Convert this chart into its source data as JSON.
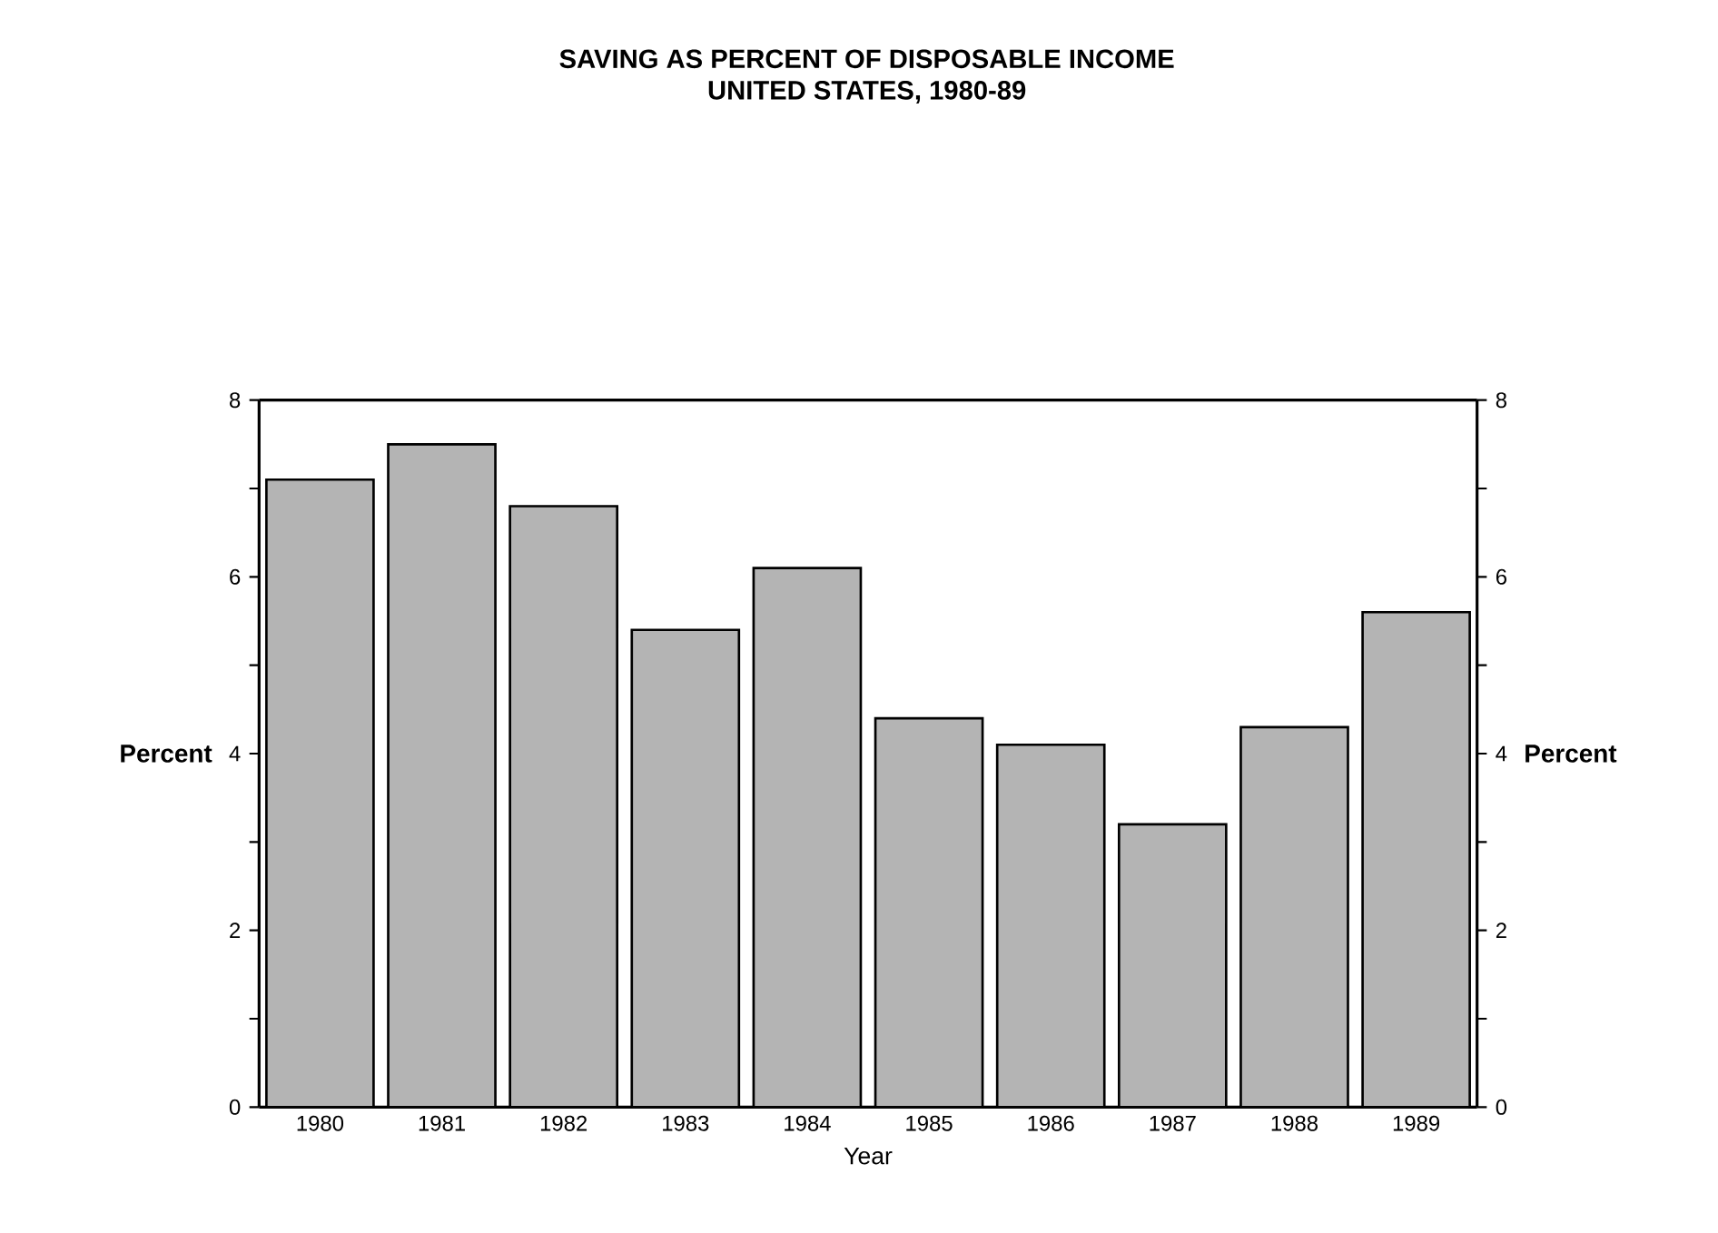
{
  "chart_data": {
    "type": "bar",
    "title": "SAVING AS PERCENT OF DISPOSABLE INCOME",
    "subtitle": "UNITED STATES, 1980-89",
    "xlabel": "Year",
    "ylabel": "Percent",
    "y2label": "Percent",
    "categories": [
      "1980",
      "1981",
      "1982",
      "1983",
      "1984",
      "1985",
      "1986",
      "1987",
      "1988",
      "1989"
    ],
    "values": [
      7.1,
      7.5,
      6.8,
      5.4,
      6.1,
      4.4,
      4.1,
      3.2,
      4.3,
      5.6
    ],
    "color": "#b4b4b4",
    "ylim": [
      0,
      8
    ],
    "yticks": [
      0,
      {
        "value": 1,
        "label": null
      },
      2,
      {
        "value": 3,
        "label": null
      },
      4,
      {
        "value": 5,
        "label": null
      },
      6,
      {
        "value": 7,
        "label": null
      },
      8
    ],
    "y2lim": [
      0,
      8
    ],
    "y2ticks": [
      0,
      {
        "value": 1,
        "label": null
      },
      2,
      {
        "value": 3,
        "label": null
      },
      4,
      {
        "value": 5,
        "label": null
      },
      6,
      {
        "value": 7,
        "label": null
      },
      8
    ]
  }
}
